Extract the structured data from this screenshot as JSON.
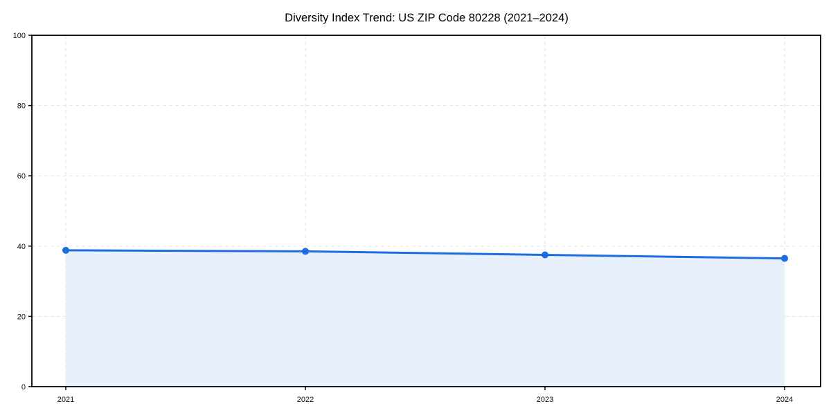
{
  "chart_data": {
    "type": "area",
    "title": "Diversity Index Trend: US ZIP Code 80228 (2021–2024)",
    "x": [
      "2021",
      "2022",
      "2023",
      "2024"
    ],
    "values": [
      38.8,
      38.5,
      37.5,
      36.5
    ],
    "xlabel": "",
    "ylabel": "",
    "ylim": [
      0,
      100
    ],
    "yticks": [
      0,
      20,
      40,
      60,
      80,
      100
    ],
    "grid": "dashed-both-axes",
    "legend": "none",
    "colors": {
      "line": "#1b6de1",
      "marker": "#1b6de1",
      "fill": "#e8f0fc",
      "grid": "#e2e2e2",
      "spine": "#000000",
      "background": "#ffffff"
    }
  }
}
